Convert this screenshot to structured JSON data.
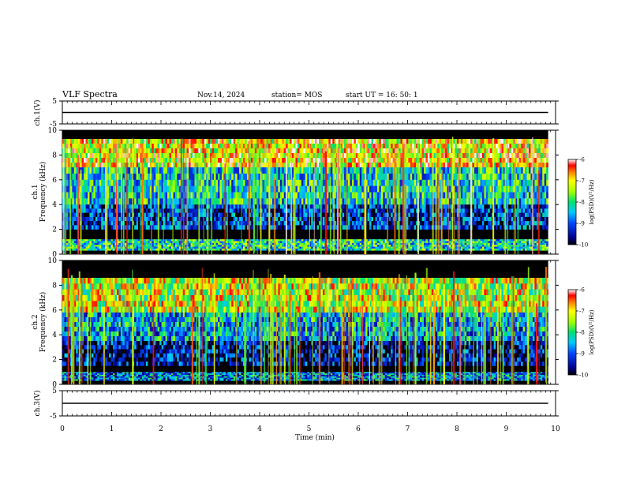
{
  "header": {
    "title": "VLF Spectra",
    "date": "Nov.14, 2024",
    "station": "station= MOS",
    "start_ut": "start UT =   16: 50: 1"
  },
  "chart_data": [
    {
      "type": "line",
      "panel": "ch1-voltage",
      "ylabel": "ch.1(V)",
      "ylim": [
        -5,
        5
      ],
      "yticks": [
        "5",
        "-5"
      ],
      "series": [
        {
          "x": [
            0,
            9.85
          ],
          "y": [
            0,
            0
          ]
        }
      ]
    },
    {
      "type": "heatmap",
      "panel": "ch1-spectrogram",
      "ylabel_top": "ch.1",
      "ylabel": "Frequency (kHz)",
      "ylim": [
        0,
        10
      ],
      "yticks": [
        "0",
        "2",
        "4",
        "6",
        "8",
        "10"
      ],
      "xlim": [
        0,
        9.85
      ],
      "bands": [
        {
          "f_lo": 7.0,
          "f_hi": 9.3,
          "level": -7.0
        },
        {
          "f_lo": 4.0,
          "f_hi": 7.0,
          "level": -8.3
        },
        {
          "f_lo": 2.0,
          "f_hi": 4.0,
          "level": -9.2
        },
        {
          "f_lo": 0.3,
          "f_hi": 1.2,
          "level": -8.2
        }
      ],
      "colorbar": {
        "label": "log(PSD)(V²/Hz)",
        "min": -10,
        "max": -6,
        "ticks": [
          "-6",
          "-7",
          "-8",
          "-9",
          "-10"
        ]
      }
    },
    {
      "type": "heatmap",
      "panel": "ch2-spectrogram",
      "ylabel_top": "ch.2",
      "ylabel": "Frequency (kHz)",
      "ylim": [
        0,
        10
      ],
      "yticks": [
        "0",
        "2",
        "4",
        "6",
        "8",
        "10"
      ],
      "xlim": [
        0,
        9.85
      ],
      "bands": [
        {
          "f_lo": 5.8,
          "f_hi": 8.6,
          "level": -7.3
        },
        {
          "f_lo": 3.5,
          "f_hi": 5.8,
          "level": -8.6
        },
        {
          "f_lo": 1.5,
          "f_hi": 3.5,
          "level": -9.5
        },
        {
          "f_lo": 0.3,
          "f_hi": 1.0,
          "level": -8.8
        }
      ],
      "colorbar": {
        "label": "log(PSD)(V²/Hz)",
        "min": -10,
        "max": -6,
        "ticks": [
          "-6",
          "-7",
          "-8",
          "-9",
          "-10"
        ]
      }
    },
    {
      "type": "line",
      "panel": "ch3-voltage",
      "ylabel": "ch.3(V)",
      "ylim": [
        -5,
        5
      ],
      "yticks": [
        "5",
        "-5"
      ],
      "xlabel": "Time (min)",
      "xlim": [
        0,
        10
      ],
      "xticks": [
        "0",
        "1",
        "2",
        "3",
        "4",
        "5",
        "6",
        "7",
        "8",
        "9",
        "10"
      ],
      "series": [
        {
          "x": [
            0,
            9.85
          ],
          "y": [
            0,
            0
          ]
        }
      ]
    }
  ]
}
